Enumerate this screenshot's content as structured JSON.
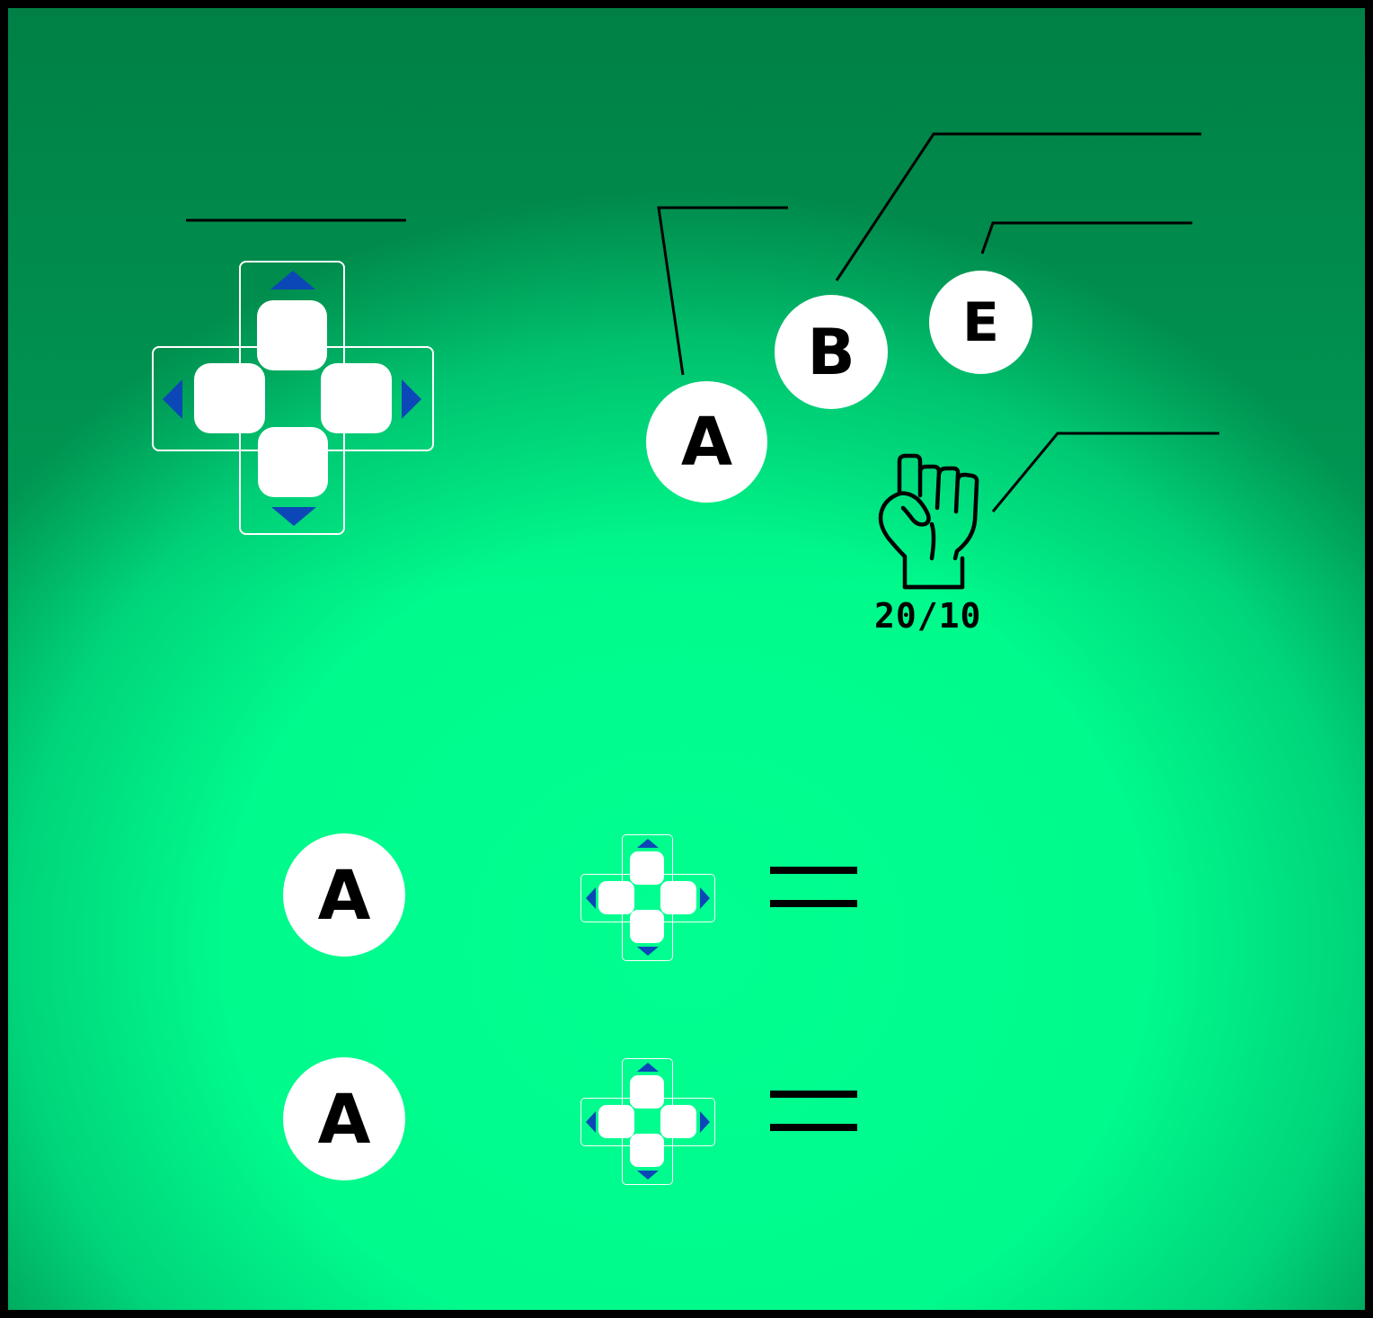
{
  "controls": {
    "dpad_main": {
      "up": "up-arrow",
      "down": "down-arrow",
      "left": "left-arrow",
      "right": "right-arrow"
    },
    "buttons": {
      "a": "A",
      "b": "B",
      "e": "E"
    }
  },
  "status": {
    "strength_icon": "fist-icon",
    "strength_value": "20/10"
  },
  "legend": {
    "rows": [
      {
        "button": "A",
        "dpad_icon": "dpad-icon",
        "equals_icon": "equals-icon"
      },
      {
        "button": "A",
        "dpad_icon": "dpad-icon",
        "equals_icon": "equals-icon"
      }
    ]
  },
  "colors": {
    "background_center": "#00ff90",
    "background_edge": "#009a55",
    "arrow": "#0c47b7",
    "button_face": "#ffffff",
    "ink": "#000000"
  }
}
